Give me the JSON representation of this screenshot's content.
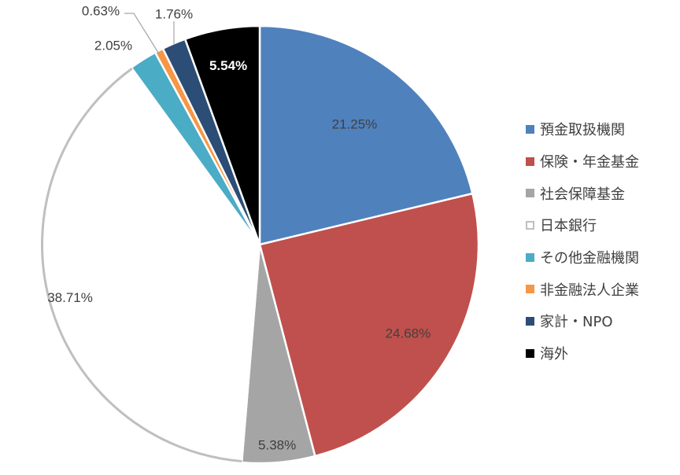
{
  "chart_data": {
    "type": "pie",
    "categories": [
      "預金取扱機関",
      "保険・年金基金",
      "社会保障基金",
      "日本銀行",
      "その他金融機関",
      "非金融法人企業",
      "家計・NPO",
      "海外"
    ],
    "values": [
      21.25,
      24.68,
      5.38,
      38.71,
      2.05,
      0.63,
      1.76,
      5.54
    ],
    "labels": [
      "21.25%",
      "24.68%",
      "5.38%",
      "38.71%",
      "2.05%",
      "0.63%",
      "1.76%",
      "5.54%"
    ],
    "colors": [
      "#4f81bd",
      "#c0504d",
      "#a5a5a5",
      "#ffffff",
      "#4bacc6",
      "#f79646",
      "#2c4d75",
      "#000000"
    ],
    "outline_colors": [
      "#ffffff",
      "#ffffff",
      "#ffffff",
      "#bfbfbf",
      "#ffffff",
      "#ffffff",
      "#ffffff",
      "#ffffff"
    ],
    "legend_position": "right"
  }
}
